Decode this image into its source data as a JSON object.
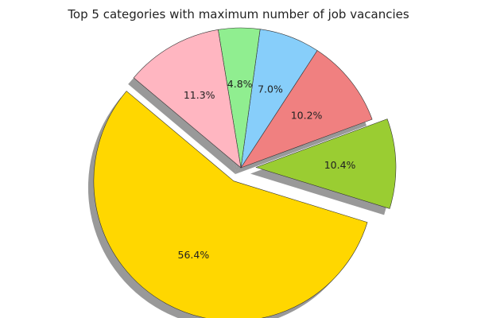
{
  "chart_data": {
    "type": "pie",
    "title": "Top 5 categories with maximum number of job vacancies",
    "slices": [
      {
        "value": 56.4,
        "label": "56.4%",
        "color": "#FFD700",
        "exploded": true
      },
      {
        "value": 10.4,
        "label": "10.4%",
        "color": "#9ACD32",
        "exploded": true
      },
      {
        "value": 10.2,
        "label": "10.2%",
        "color": "#F08080",
        "exploded": false
      },
      {
        "value": 7.0,
        "label": "7.0%",
        "color": "#87CEFA",
        "exploded": false
      },
      {
        "value": 4.8,
        "label": "4.8%",
        "color": "#90EE90",
        "exploded": false
      },
      {
        "value": 11.3,
        "label": "11.3%",
        "color": "#FFB6C1",
        "exploded": false
      }
    ],
    "shadow": true
  }
}
